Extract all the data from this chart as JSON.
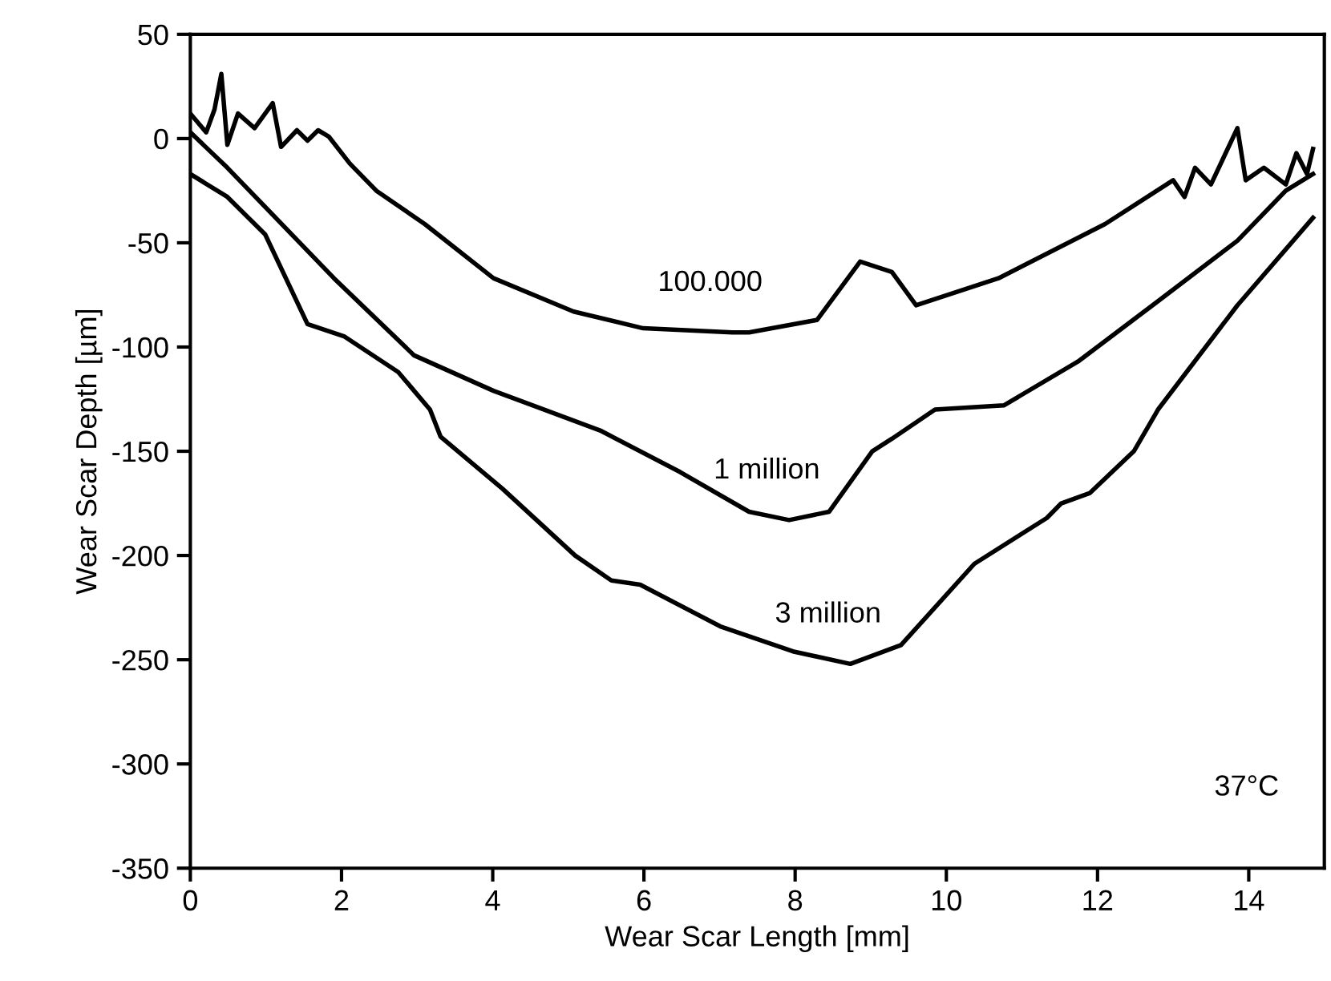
{
  "chart_data": {
    "type": "line",
    "xlabel": "Wear Scar Length [mm]",
    "ylabel": "Wear Scar Depth [µm]",
    "xlim": [
      0,
      15
    ],
    "xticks": [
      0,
      2,
      4,
      6,
      8,
      10,
      12,
      14
    ],
    "ylim": [
      -350,
      50
    ],
    "yticks": [
      -350,
      -300,
      -250,
      -200,
      -150,
      -100,
      -50,
      0,
      50
    ],
    "grid": false,
    "legend": false,
    "marker": "none",
    "line_style": "solid",
    "annotations": [
      "37°C"
    ],
    "series": [
      {
        "name": "100.000",
        "color": "#000000",
        "x": [
          0,
          0.21,
          0.32,
          0.41,
          0.49,
          0.63,
          0.85,
          1.09,
          1.2,
          1.41,
          1.55,
          1.69,
          1.83,
          2.11,
          2.46,
          3.1,
          4.01,
          5.07,
          5.99,
          7.17,
          7.39,
          8.29,
          8.86,
          9.28,
          9.6,
          10.69,
          12.1,
          13.0,
          13.15,
          13.29,
          13.5,
          13.85,
          13.96,
          14.2,
          14.49,
          14.63,
          14.77,
          14.85
        ],
        "values": [
          12,
          3,
          14,
          31,
          -3,
          12,
          5,
          17,
          -4,
          4,
          -1,
          4,
          1,
          -12,
          -25,
          -41,
          -67,
          -83,
          -91,
          -93,
          -93,
          -87,
          -59,
          -64,
          -80,
          -67,
          -41,
          -20,
          -28,
          -14,
          -22,
          5,
          -20,
          -14,
          -22,
          -7,
          -17,
          -5
        ]
      },
      {
        "name": "1 million",
        "color": "#000000",
        "x": [
          0,
          0.49,
          1.9,
          2.96,
          4.01,
          5.42,
          6.48,
          7.39,
          7.92,
          8.45,
          9.02,
          9.28,
          9.85,
          10.76,
          11.74,
          12.8,
          13.85,
          14.49,
          14.85
        ],
        "values": [
          3,
          -14,
          -67,
          -104,
          -121,
          -140,
          -160,
          -179,
          -183,
          -179,
          -150,
          -144,
          -130,
          -128,
          -107,
          -78,
          -49,
          -25,
          -17
        ]
      },
      {
        "name": "3 million",
        "color": "#000000",
        "x": [
          0,
          0.49,
          0.99,
          1.55,
          2.04,
          2.75,
          3.17,
          3.31,
          4.13,
          5.09,
          5.57,
          5.95,
          7.01,
          7.97,
          8.73,
          9.4,
          10.37,
          11.33,
          11.52,
          11.9,
          12.48,
          12.8,
          13.85,
          14.85
        ],
        "values": [
          -17,
          -28,
          -46,
          -89,
          -95,
          -112,
          -130,
          -143,
          -168,
          -200,
          -212,
          -214,
          -234,
          -246,
          -252,
          -243,
          -204,
          -182,
          -175,
          -170,
          -150,
          -130,
          -80,
          -38
        ]
      }
    ]
  }
}
